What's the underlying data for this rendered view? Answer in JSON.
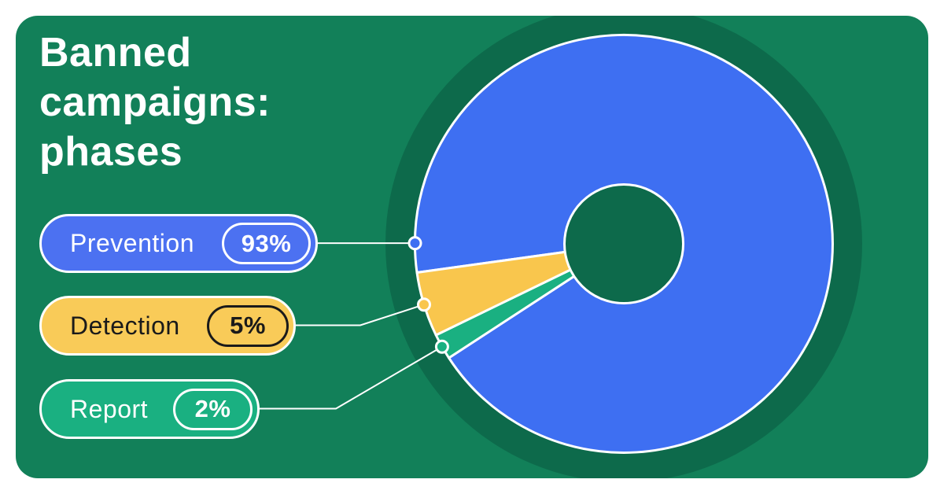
{
  "page": {
    "background": "#ffffff"
  },
  "card": {
    "background": "#128059"
  },
  "title": {
    "text": "Banned campaigns: phases",
    "line1": "Banned",
    "line2": "campaigns:",
    "line3": "phases",
    "color": "#ffffff"
  },
  "chart_data": {
    "type": "pie",
    "subtype": "donut",
    "title": "Banned campaigns: phases",
    "categories": [
      "Prevention",
      "Detection",
      "Report"
    ],
    "values": [
      93,
      5,
      2
    ],
    "unit": "%",
    "series_colors": [
      "#3E6FF2",
      "#F9C64D",
      "#1AB081"
    ],
    "backdrop_color": "#0D6A4B",
    "hole_color": "#0D6A4B",
    "slice_stroke_color": "#FFFFFF",
    "start_angle_deg": 172.1,
    "legend_position": "left",
    "labels_shown_as": "callout pills with leader lines"
  },
  "legend": {
    "items": [
      {
        "label": "Prevention",
        "value": "93%",
        "fill": "#4C71F1",
        "text_color": "#FFFFFF",
        "capsule_border": "#FFFFFF"
      },
      {
        "label": "Detection",
        "value": "5%",
        "fill": "#F9CB58",
        "text_color": "#1A1A1A",
        "capsule_border": "#1A1A1A"
      },
      {
        "label": "Report",
        "value": "2%",
        "fill": "#1AB081",
        "text_color": "#FFFFFF",
        "capsule_border": "#FFFFFF"
      }
    ]
  }
}
